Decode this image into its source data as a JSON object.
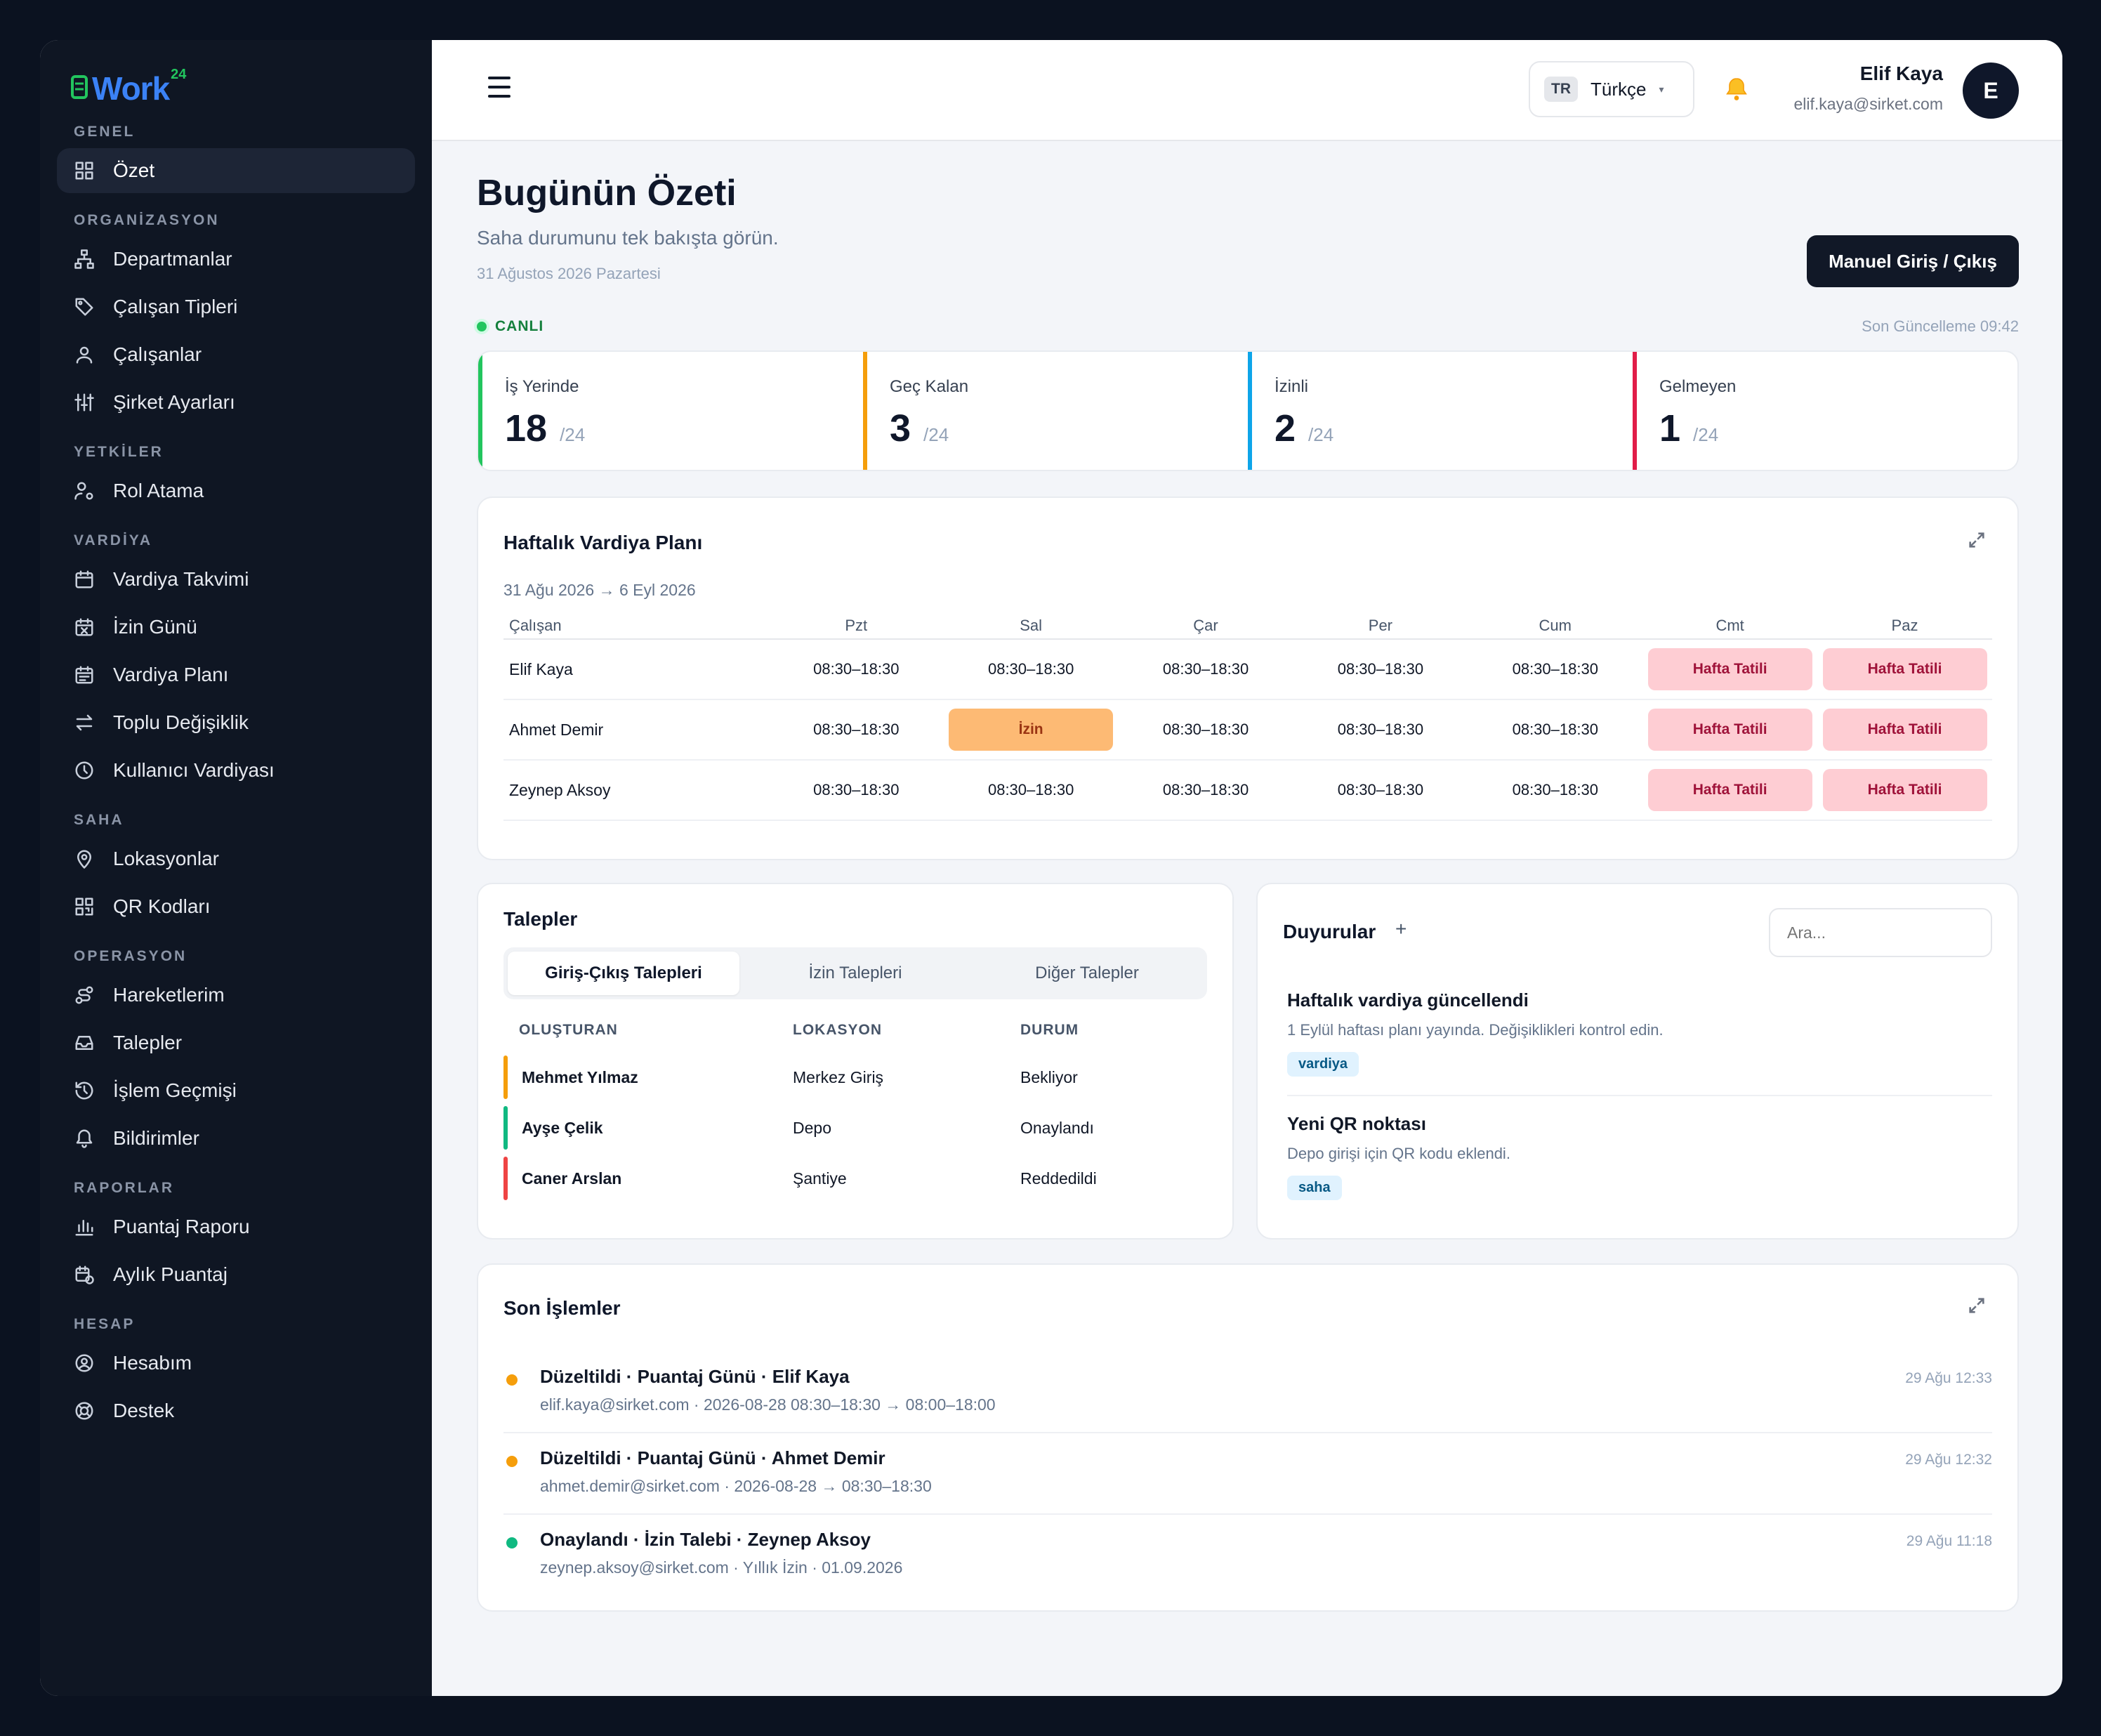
{
  "app": {
    "logo_text": "Work",
    "logo_sup": "24"
  },
  "sidebar": {
    "groups": [
      {
        "title": "GENEL",
        "items": [
          {
            "label": "Özet",
            "icon": "grid-icon",
            "active": true
          }
        ]
      },
      {
        "title": "ORGANİZASYON",
        "items": [
          {
            "label": "Departmanlar",
            "icon": "org-chart-icon"
          },
          {
            "label": "Çalışan Tipleri",
            "icon": "tag-icon"
          },
          {
            "label": "Çalışanlar",
            "icon": "user-icon"
          },
          {
            "label": "Şirket Ayarları",
            "icon": "sliders-icon"
          }
        ]
      },
      {
        "title": "YETKİLER",
        "items": [
          {
            "label": "Rol Atama",
            "icon": "user-cog-icon"
          }
        ]
      },
      {
        "title": "VARDİYA",
        "items": [
          {
            "label": "Vardiya Takvimi",
            "icon": "calendar-icon"
          },
          {
            "label": "İzin Günü",
            "icon": "calendar-x-icon"
          },
          {
            "label": "Vardiya Planı",
            "icon": "calendar-list-icon"
          },
          {
            "label": "Toplu Değişiklik",
            "icon": "swap-icon"
          },
          {
            "label": "Kullanıcı Vardiyası",
            "icon": "clock-icon"
          }
        ]
      },
      {
        "title": "SAHA",
        "items": [
          {
            "label": "Lokasyonlar",
            "icon": "map-pin-icon"
          },
          {
            "label": "QR Kodları",
            "icon": "qr-icon"
          }
        ]
      },
      {
        "title": "OPERASYON",
        "items": [
          {
            "label": "Hareketlerim",
            "icon": "route-icon"
          },
          {
            "label": "Talepler",
            "icon": "inbox-icon"
          },
          {
            "label": "İşlem Geçmişi",
            "icon": "history-icon"
          },
          {
            "label": "Bildirimler",
            "icon": "bell-icon"
          }
        ]
      },
      {
        "title": "RAPORLAR",
        "items": [
          {
            "label": "Puantaj Raporu",
            "icon": "bar-chart-icon"
          },
          {
            "label": "Aylık Puantaj",
            "icon": "calendar-clock-icon"
          }
        ]
      },
      {
        "title": "HESAP",
        "items": [
          {
            "label": "Hesabım",
            "icon": "user-circle-icon"
          },
          {
            "label": "Destek",
            "icon": "lifebuoy-icon"
          }
        ]
      }
    ]
  },
  "topbar": {
    "lang_code": "TR",
    "lang_name": "Türkçe",
    "user_name": "Elif Kaya",
    "user_email": "elif.kaya@sirket.com",
    "avatar_initial": "E"
  },
  "page": {
    "title": "Bugünün Özeti",
    "subtitle": "Saha durumunu tek bakışta görün.",
    "date": "31 Ağustos 2026 Pazartesi",
    "primary_button": "Manuel Giriş / Çıkış",
    "live_label": "CANLI",
    "last_update": "Son Güncelleme 09:42"
  },
  "stats": [
    {
      "label": "İş Yerinde",
      "value": "18",
      "total": "/24",
      "color": "#22c55e"
    },
    {
      "label": "Geç Kalan",
      "value": "3",
      "total": "/24",
      "color": "#f59e0b"
    },
    {
      "label": "İzinli",
      "value": "2",
      "total": "/24",
      "color": "#0ea5e9"
    },
    {
      "label": "Gelmeyen",
      "value": "1",
      "total": "/24",
      "color": "#e11d48"
    }
  ],
  "shift_plan": {
    "title": "Haftalık Vardiya Planı",
    "range": "31 Ağu 2026 → 6 Eyl 2026",
    "columns": [
      "Çalışan",
      "Pzt",
      "Sal",
      "Çar",
      "Per",
      "Cum",
      "Cmt",
      "Paz"
    ],
    "rows": [
      {
        "name": "Elif Kaya",
        "cells": [
          "08:30–18:30",
          "08:30–18:30",
          "08:30–18:30",
          "08:30–18:30",
          "08:30–18:30",
          "Hafta Tatili",
          "Hafta Tatili"
        ]
      },
      {
        "name": "Ahmet Demir",
        "cells": [
          "08:30–18:30",
          "İzin",
          "08:30–18:30",
          "08:30–18:30",
          "08:30–18:30",
          "Hafta Tatili",
          "Hafta Tatili"
        ]
      },
      {
        "name": "Zeynep Aksoy",
        "cells": [
          "08:30–18:30",
          "08:30–18:30",
          "08:30–18:30",
          "08:30–18:30",
          "08:30–18:30",
          "Hafta Tatili",
          "Hafta Tatili"
        ]
      }
    ]
  },
  "requests": {
    "title": "Talepler",
    "tabs": [
      "Giriş-Çıkış Talepleri",
      "İzin Talepleri",
      "Diğer Talepler"
    ],
    "columns": [
      "OLUŞTURAN",
      "LOKASYON",
      "DURUM"
    ],
    "rows": [
      {
        "creator": "Mehmet Yılmaz",
        "location": "Merkez Giriş",
        "status": "Bekliyor",
        "color": "#f59e0b"
      },
      {
        "creator": "Ayşe Çelik",
        "location": "Depo",
        "status": "Onaylandı",
        "color": "#10b981"
      },
      {
        "creator": "Caner Arslan",
        "location": "Şantiye",
        "status": "Reddedildi",
        "color": "#ef4444"
      }
    ]
  },
  "announcements": {
    "title": "Duyurular",
    "search_placeholder": "Ara...",
    "items": [
      {
        "title": "Haftalık vardiya güncellendi",
        "body": "1 Eylül haftası planı yayında. Değişiklikleri kontrol edin.",
        "tag": "vardiya"
      },
      {
        "title": "Yeni QR noktası",
        "body": "Depo girişi için QR kodu eklendi.",
        "tag": "saha"
      }
    ]
  },
  "activity": {
    "title": "Son İşlemler",
    "items": [
      {
        "title": "Düzeltildi · Puantaj Günü · Elif Kaya",
        "sub": "elif.kaya@sirket.com · 2026-08-28 08:30–18:30 → 08:00–18:00",
        "time": "29 Ağu 12:33",
        "color": "#f59e0b"
      },
      {
        "title": "Düzeltildi · Puantaj Günü · Ahmet Demir",
        "sub": "ahmet.demir@sirket.com · 2026-08-28 → 08:30–18:30",
        "time": "29 Ağu 12:32",
        "color": "#f59e0b"
      },
      {
        "title": "Onaylandı · İzin Talebi · Zeynep Aksoy",
        "sub": "zeynep.aksoy@sirket.com · Yıllık İzin · 01.09.2026",
        "time": "29 Ağu 11:18",
        "color": "#10b981"
      }
    ]
  }
}
